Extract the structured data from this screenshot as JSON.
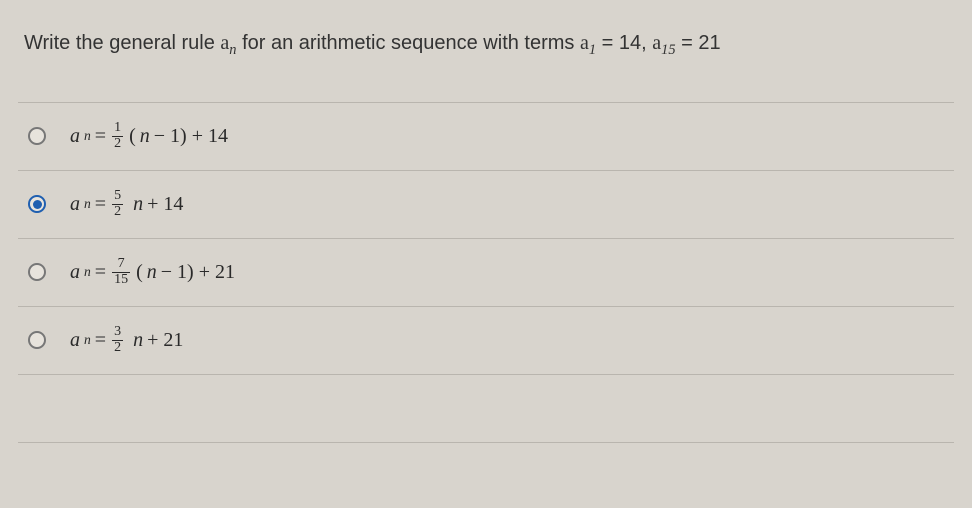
{
  "question": {
    "prefix": "Write the general rule ",
    "an_var_a": "a",
    "an_var_n": "n",
    "mid": " for an arithmetic sequence with terms ",
    "a1_a": "a",
    "a1_sub": "1",
    "eq1": " = 14, ",
    "a15_a": "a",
    "a15_sub": "15",
    "eq15": " = 21"
  },
  "options": [
    {
      "selected": false,
      "lhs_a": "a",
      "lhs_n": "n",
      "eq": "=",
      "frac_num": "1",
      "frac_den": "2",
      "tail_pre": "(",
      "tail_n": "n",
      "tail_post": " − 1) + 14"
    },
    {
      "selected": true,
      "lhs_a": "a",
      "lhs_n": "n",
      "eq": "=",
      "frac_num": "5",
      "frac_den": "2",
      "tail_pre": "",
      "tail_n": "n",
      "tail_post": " + 14"
    },
    {
      "selected": false,
      "lhs_a": "a",
      "lhs_n": "n",
      "eq": "=",
      "frac_num": "7",
      "frac_den": "15",
      "tail_pre": "(",
      "tail_n": "n",
      "tail_post": " − 1) + 21"
    },
    {
      "selected": false,
      "lhs_a": "a",
      "lhs_n": "n",
      "eq": "=",
      "frac_num": "3",
      "frac_den": "2",
      "tail_pre": "",
      "tail_n": "n",
      "tail_post": " + 21"
    }
  ],
  "style": {
    "background_color": "#d8d4cd",
    "text_color": "#3a3a3a",
    "divider_color": "#b9b5ae",
    "radio_border": "#777",
    "radio_selected": "#1f5fb0",
    "question_fontsize": 20,
    "formula_fontsize": 20
  }
}
